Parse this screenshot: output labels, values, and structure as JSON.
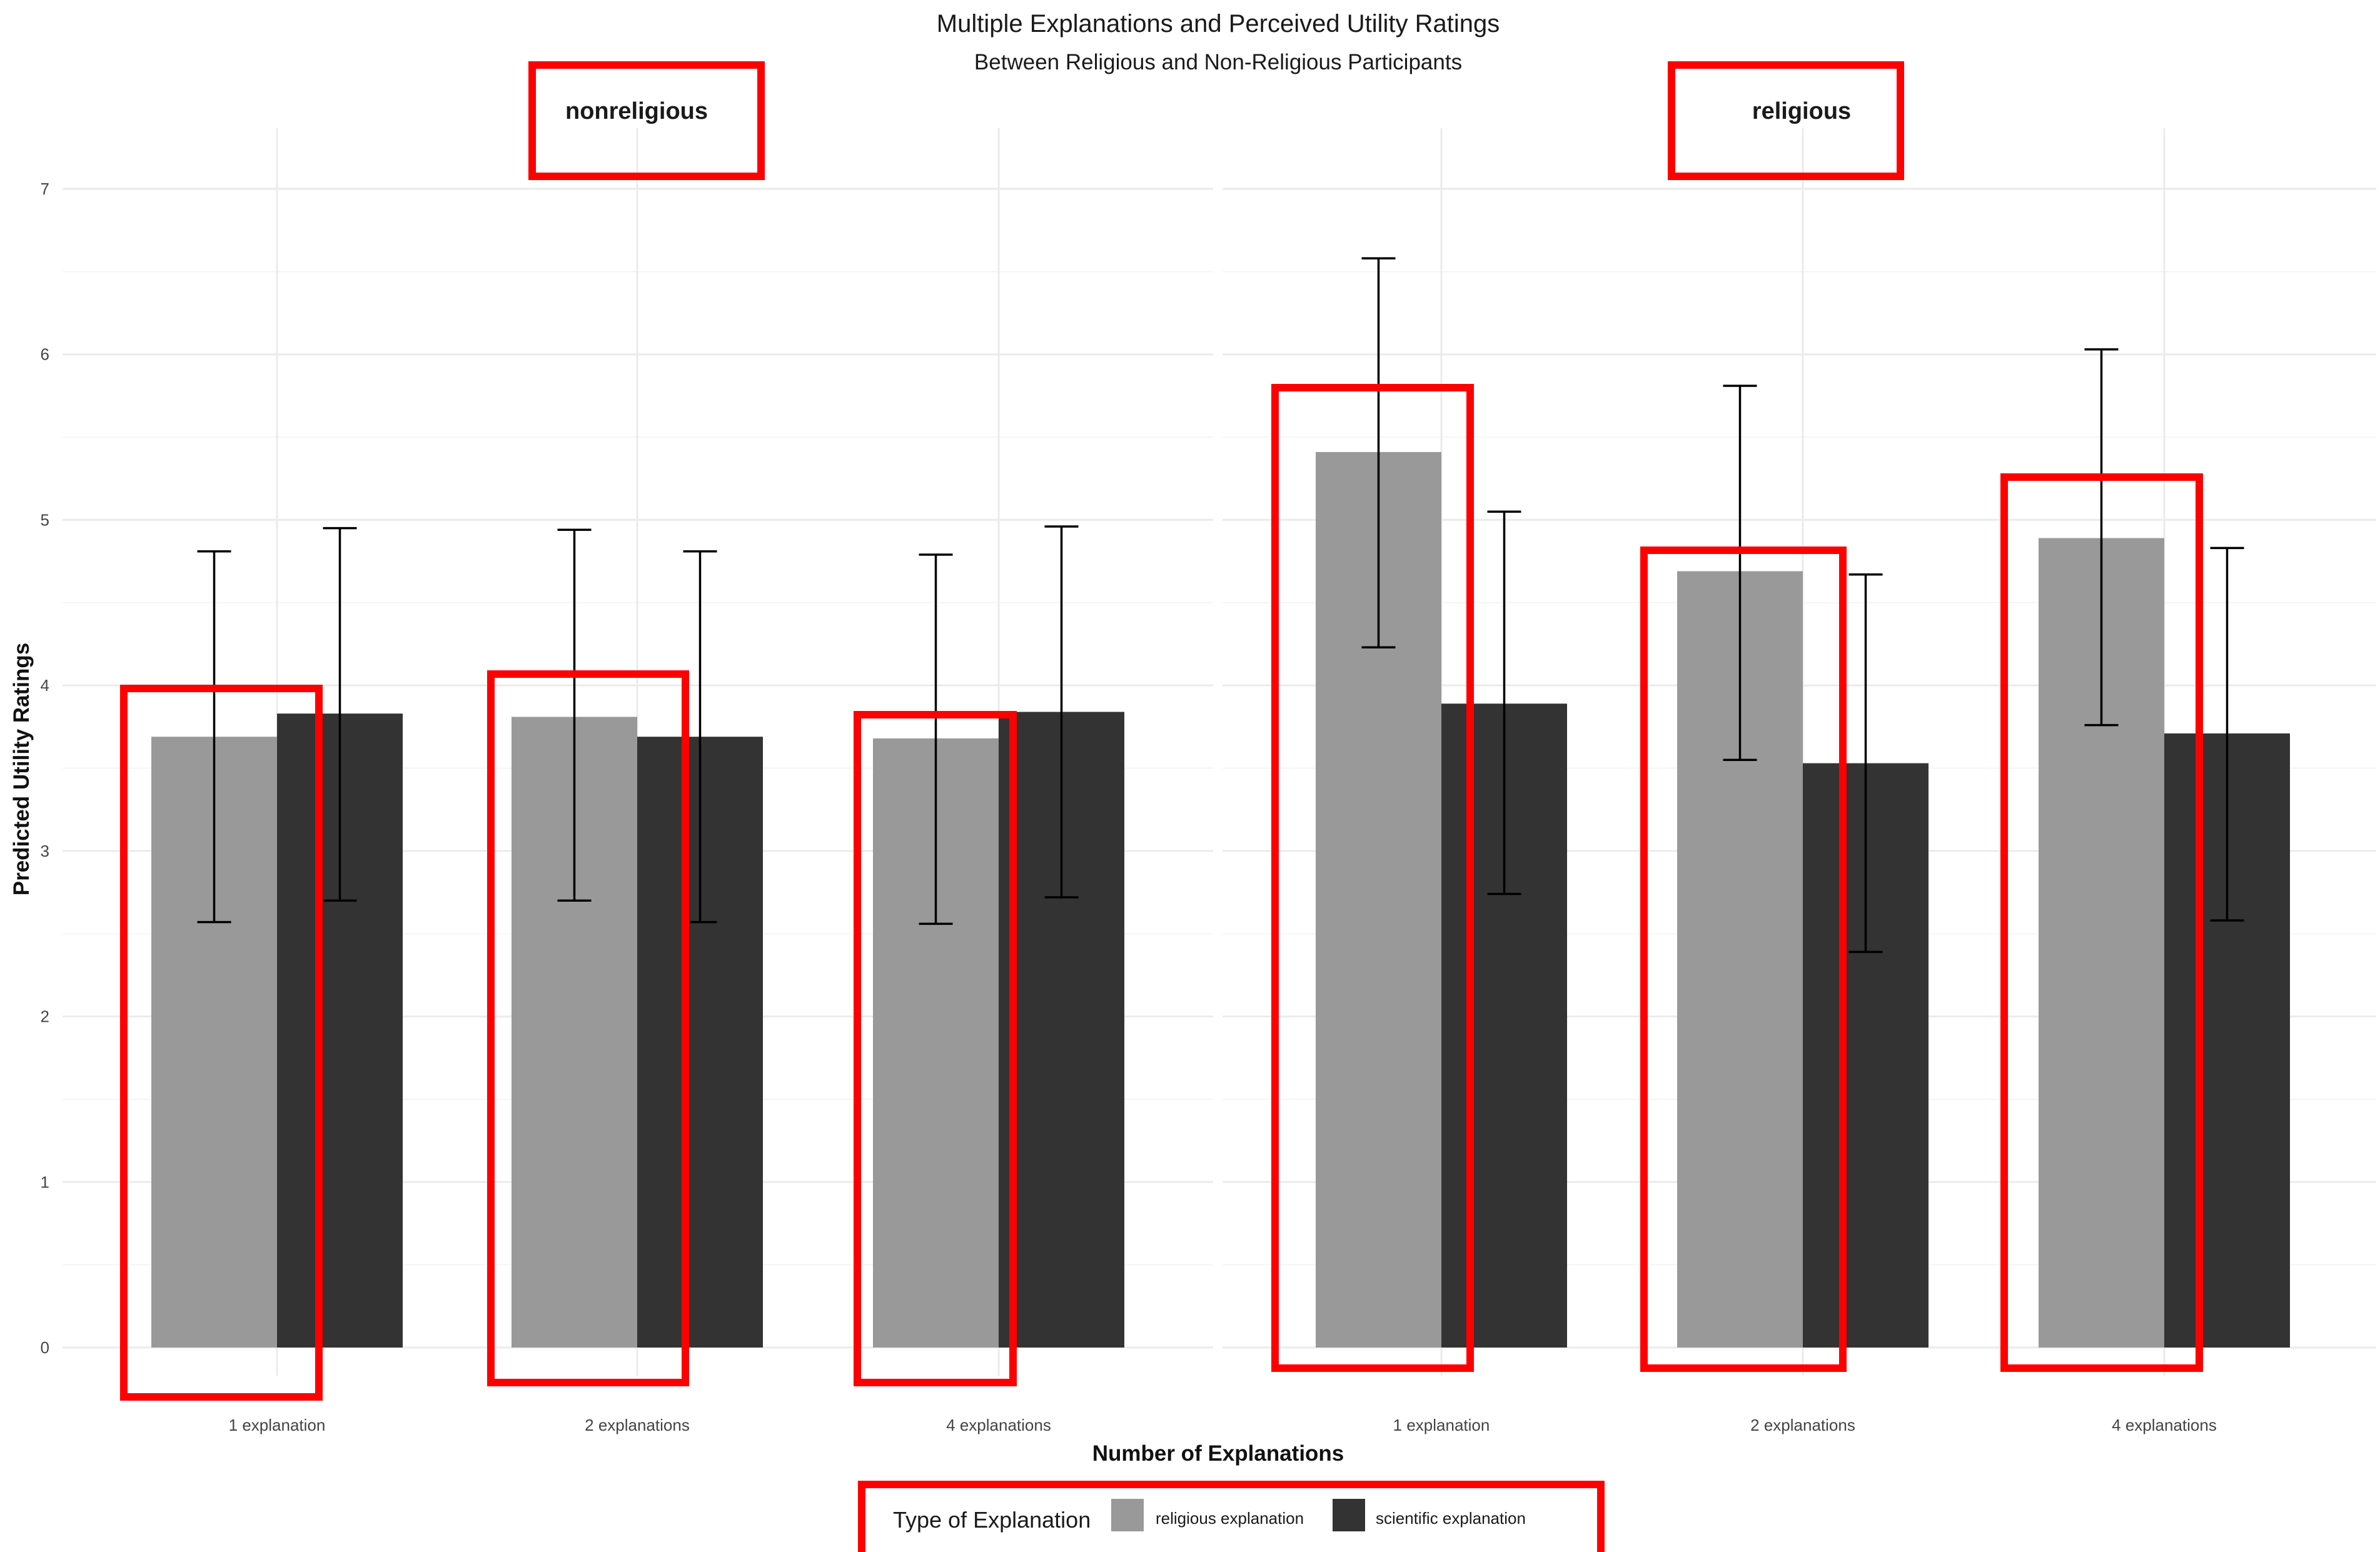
{
  "chart_data": {
    "type": "bar",
    "title": "Multiple Explanations and Perceived Utility Ratings",
    "subtitle": "Between Religious and Non-Religious Participants",
    "xlabel": "Number of Explanations",
    "ylabel": "Predicted Utility Ratings",
    "ylim": [
      0,
      7
    ],
    "y_ticks": [
      "0",
      "1",
      "2",
      "3",
      "4",
      "5",
      "6",
      "7"
    ],
    "grid": true,
    "categories": [
      "1 explanation",
      "2 explanations",
      "4 explanations"
    ],
    "legend": {
      "title": "Type of Explanation",
      "position": "bottom",
      "items": [
        {
          "label": "religious explanation",
          "color": "#999999"
        },
        {
          "label": "scientific explanation",
          "color": "#333333"
        }
      ]
    },
    "panels": [
      {
        "label": "nonreligious",
        "series": [
          {
            "name": "religious explanation",
            "color": "#999999",
            "values": [
              3.69,
              3.81,
              3.68
            ],
            "error_low": [
              2.57,
              2.7,
              2.56
            ],
            "error_high": [
              4.81,
              4.94,
              4.79
            ]
          },
          {
            "name": "scientific explanation",
            "color": "#333333",
            "values": [
              3.83,
              3.69,
              3.84
            ],
            "error_low": [
              2.7,
              2.57,
              2.72
            ],
            "error_high": [
              4.95,
              4.81,
              4.96
            ]
          }
        ]
      },
      {
        "label": "religious",
        "series": [
          {
            "name": "religious explanation",
            "color": "#999999",
            "values": [
              5.41,
              4.69,
              4.89
            ],
            "error_low": [
              4.23,
              3.55,
              3.76
            ],
            "error_high": [
              6.58,
              5.81,
              6.03
            ]
          },
          {
            "name": "scientific explanation",
            "color": "#333333",
            "values": [
              3.89,
              3.53,
              3.71
            ],
            "error_low": [
              2.74,
              2.39,
              2.58
            ],
            "error_high": [
              5.05,
              4.67,
              4.83
            ]
          }
        ]
      }
    ],
    "highlight_color": "#ff0000"
  }
}
